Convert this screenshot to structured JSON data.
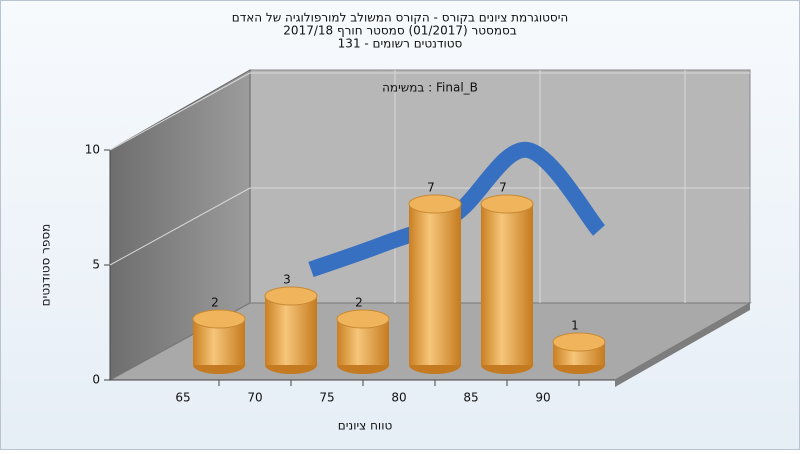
{
  "chart_data": {
    "type": "bar",
    "title": [
      "היסטוגרמת ציונים בקורס - הקורס המשולב למורפולוגיה של האדם",
      "בסמסטר  (01/2017)  סמסטר חורף 2017/18",
      "סטודנטים רשומים - 131"
    ],
    "annotation": "במשימה : Final_B",
    "x_label": "טווח ציונים",
    "y_label": "מספר סטודנטים",
    "categories": [
      "65",
      "70",
      "75",
      "80",
      "85",
      "90"
    ],
    "values": [
      2,
      3,
      2,
      7,
      7,
      1
    ],
    "color": "#e8a33c",
    "curve": {
      "values": [
        null,
        3.5,
        4.6,
        5.9,
        8.7,
        5.2
      ],
      "color": "#2f6cc0"
    },
    "ylim": [
      0,
      10
    ],
    "yticks": [
      0,
      5,
      10
    ],
    "grid": true
  }
}
